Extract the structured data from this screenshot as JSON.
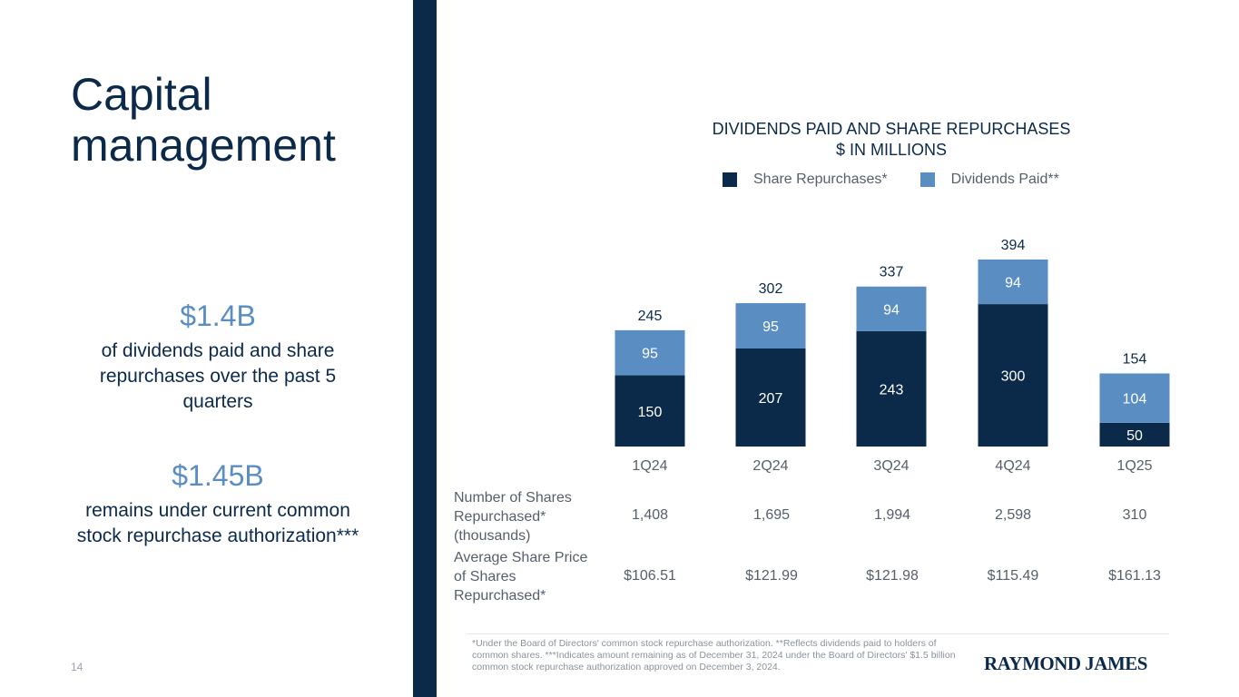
{
  "page": {
    "title": "Capital management",
    "page_number": "14"
  },
  "highlights": [
    {
      "value": "$1.4B",
      "text": "of dividends paid and share repurchases over the past 5 quarters"
    },
    {
      "value": "$1.45B",
      "text": "remains under current common stock repurchase authorization***"
    }
  ],
  "chart_data": {
    "type": "bar",
    "stacked": true,
    "title": "DIVIDENDS PAID AND SHARE REPURCHASES",
    "subtitle": "$ IN MILLIONS",
    "categories": [
      "1Q24",
      "2Q24",
      "3Q24",
      "4Q24",
      "1Q25"
    ],
    "series": [
      {
        "name": "Share Repurchases*",
        "values": [
          150,
          207,
          243,
          300,
          50
        ],
        "color": "#0b2a4a"
      },
      {
        "name": "Dividends Paid**",
        "values": [
          95,
          95,
          94,
          94,
          104
        ],
        "color": "#5a8ec2"
      }
    ],
    "totals": [
      245,
      302,
      337,
      394,
      154
    ],
    "legend": "top-center",
    "grid": false
  },
  "table": {
    "rows": [
      {
        "label": "Number of Shares Repurchased* (thousands)",
        "values": [
          "1,408",
          "1,695",
          "1,994",
          "2,598",
          "310"
        ]
      },
      {
        "label": "Average Share Price of Shares Repurchased*",
        "values": [
          "$106.51",
          "$121.99",
          "$121.98",
          "$115.49",
          "$161.13"
        ]
      }
    ]
  },
  "footnote": "*Under the Board of Directors' common stock repurchase authorization. **Reflects dividends paid to holders of common shares. ***Indicates amount remaining as of December 31, 2024 under the Board of Directors' $1.5 billion common stock repurchase authorization approved on December 3, 2024.",
  "logo_text": "RAYMOND JAMES"
}
